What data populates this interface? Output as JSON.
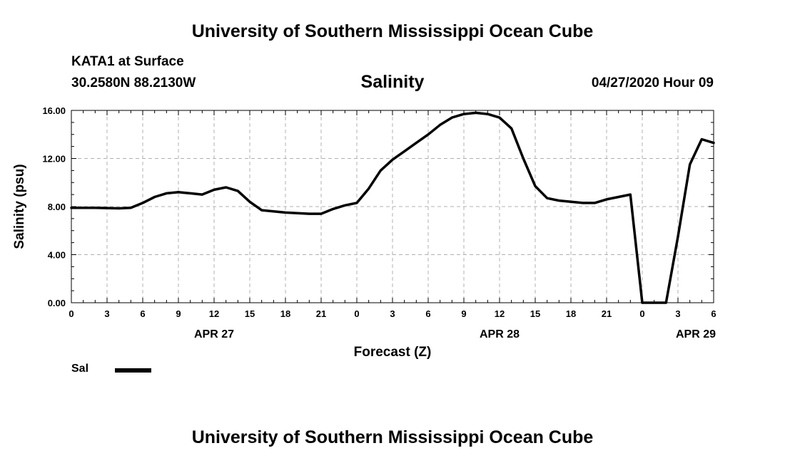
{
  "header": {
    "title": "University of Southern Mississippi Ocean Cube",
    "station": "KATA1 at Surface",
    "coordinates": "30.2580N 88.2130W",
    "variable": "Salinity",
    "datetime": "04/27/2020 Hour 09"
  },
  "footer": {
    "title": "University of Southern Mississippi Ocean Cube"
  },
  "legend": {
    "label": "Sal",
    "color": "#000000"
  },
  "chart_data": {
    "type": "line",
    "title": "Salinity",
    "xlabel": "Forecast (Z)",
    "ylabel": "Salinity (psu)",
    "xlim": [
      0,
      54
    ],
    "ylim": [
      0,
      16
    ],
    "yticks": [
      "0.00",
      "4.00",
      "8.00",
      "12.00",
      "16.00"
    ],
    "xticks": [
      "0",
      "3",
      "6",
      "9",
      "12",
      "15",
      "18",
      "21",
      "0",
      "3",
      "6",
      "9",
      "12",
      "15",
      "18",
      "21",
      "0",
      "3",
      "6"
    ],
    "date_labels": [
      {
        "label": "APR 27",
        "at_hour": 12
      },
      {
        "label": "APR 28",
        "at_hour": 36
      },
      {
        "label": "APR 29",
        "at_hour": 52.5
      }
    ],
    "grid": true,
    "series": [
      {
        "name": "Sal",
        "x": [
          0,
          2,
          4,
          5,
          6,
          7,
          8,
          9,
          10,
          11,
          12,
          13,
          14,
          15,
          16,
          17,
          18,
          20,
          21,
          22,
          23,
          24,
          25,
          26,
          27,
          28,
          29,
          30,
          31,
          32,
          33,
          34,
          35,
          36,
          37,
          38,
          39,
          40,
          41,
          42,
          43,
          44,
          45,
          46,
          47,
          48,
          49,
          50,
          51,
          52,
          53,
          54
        ],
        "values": [
          7.9,
          7.9,
          7.85,
          7.9,
          8.3,
          8.8,
          9.1,
          9.2,
          9.1,
          9.0,
          9.4,
          9.6,
          9.3,
          8.4,
          7.7,
          7.6,
          7.5,
          7.4,
          7.4,
          7.8,
          8.1,
          8.3,
          9.5,
          11.0,
          11.9,
          12.6,
          13.3,
          14.0,
          14.8,
          15.4,
          15.7,
          15.8,
          15.7,
          15.4,
          14.5,
          12.0,
          9.7,
          8.7,
          8.5,
          8.4,
          8.3,
          8.3,
          8.6,
          8.8,
          9.0,
          0.0,
          0.0,
          0.0,
          5.5,
          11.5,
          13.6,
          13.3
        ]
      }
    ]
  }
}
